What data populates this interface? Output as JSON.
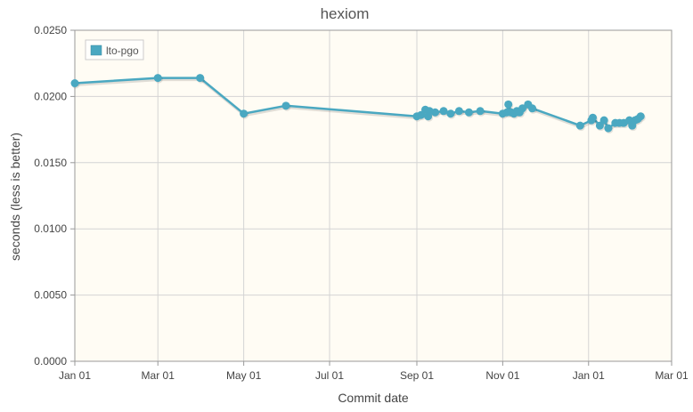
{
  "chart_data": {
    "type": "line",
    "title": "hexiom",
    "xlabel": "Commit date",
    "ylabel": "seconds (less is better)",
    "ylim": [
      0,
      0.025
    ],
    "xlim": [
      "2013-01-01",
      "2014-03-01"
    ],
    "x_ticks": [
      {
        "date": "2013-01-01",
        "label": "Jan 01"
      },
      {
        "date": "2013-03-01",
        "label": "Mar 01"
      },
      {
        "date": "2013-05-01",
        "label": "May 01"
      },
      {
        "date": "2013-07-01",
        "label": "Jul 01"
      },
      {
        "date": "2013-09-01",
        "label": "Sep 01"
      },
      {
        "date": "2013-11-01",
        "label": "Nov 01"
      },
      {
        "date": "2014-01-01",
        "label": "Jan 01"
      },
      {
        "date": "2014-03-01",
        "label": "Mar 01"
      }
    ],
    "y_ticks": [
      {
        "value": 0.0,
        "label": "0.0000"
      },
      {
        "value": 0.005,
        "label": "0.0050"
      },
      {
        "value": 0.01,
        "label": "0.0100"
      },
      {
        "value": 0.015,
        "label": "0.0150"
      },
      {
        "value": 0.02,
        "label": "0.0200"
      },
      {
        "value": 0.025,
        "label": "0.0250"
      }
    ],
    "grid": true,
    "legend_position": "top-left",
    "background_color": "#fffcf4",
    "series": [
      {
        "name": "lto-pgo",
        "color": "#4aa8c1",
        "points": [
          {
            "x": "2013-01-01",
            "y": 0.021
          },
          {
            "x": "2013-03-01",
            "y": 0.0214
          },
          {
            "x": "2013-03-31",
            "y": 0.0214
          },
          {
            "x": "2013-05-01",
            "y": 0.0187
          },
          {
            "x": "2013-05-31",
            "y": 0.0193
          },
          {
            "x": "2013-09-01",
            "y": 0.0185
          },
          {
            "x": "2013-09-04",
            "y": 0.0186
          },
          {
            "x": "2013-09-07",
            "y": 0.019
          },
          {
            "x": "2013-09-09",
            "y": 0.0185
          },
          {
            "x": "2013-09-10",
            "y": 0.0189
          },
          {
            "x": "2013-09-14",
            "y": 0.0188
          },
          {
            "x": "2013-09-20",
            "y": 0.0189
          },
          {
            "x": "2013-09-25",
            "y": 0.0187
          },
          {
            "x": "2013-10-01",
            "y": 0.0189
          },
          {
            "x": "2013-10-08",
            "y": 0.0188
          },
          {
            "x": "2013-10-16",
            "y": 0.0189
          },
          {
            "x": "2013-11-01",
            "y": 0.0187
          },
          {
            "x": "2013-11-04",
            "y": 0.0188
          },
          {
            "x": "2013-11-05",
            "y": 0.0194
          },
          {
            "x": "2013-11-07",
            "y": 0.0188
          },
          {
            "x": "2013-11-09",
            "y": 0.0187
          },
          {
            "x": "2013-11-11",
            "y": 0.0189
          },
          {
            "x": "2013-11-13",
            "y": 0.0188
          },
          {
            "x": "2013-11-15",
            "y": 0.0191
          },
          {
            "x": "2013-11-19",
            "y": 0.0194
          },
          {
            "x": "2013-11-22",
            "y": 0.0191
          },
          {
            "x": "2013-12-26",
            "y": 0.0178
          },
          {
            "x": "2014-01-03",
            "y": 0.0182
          },
          {
            "x": "2014-01-04",
            "y": 0.0184
          },
          {
            "x": "2014-01-09",
            "y": 0.0178
          },
          {
            "x": "2014-01-12",
            "y": 0.0182
          },
          {
            "x": "2014-01-15",
            "y": 0.0176
          },
          {
            "x": "2014-01-20",
            "y": 0.018
          },
          {
            "x": "2014-01-23",
            "y": 0.018
          },
          {
            "x": "2014-01-26",
            "y": 0.018
          },
          {
            "x": "2014-01-30",
            "y": 0.0182
          },
          {
            "x": "2014-02-01",
            "y": 0.0178
          },
          {
            "x": "2014-02-03",
            "y": 0.0182
          },
          {
            "x": "2014-02-05",
            "y": 0.0183
          },
          {
            "x": "2014-02-07",
            "y": 0.0185
          }
        ]
      }
    ]
  }
}
